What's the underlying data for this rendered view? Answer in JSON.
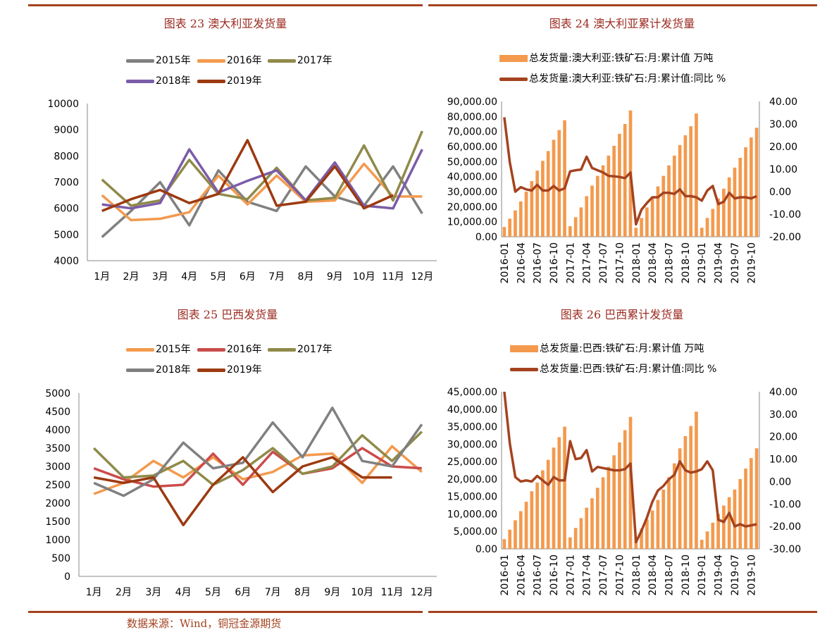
{
  "source": "数据来源：Wind，铜冠金源期货",
  "colors": {
    "title": "#9b2b21",
    "rule": "#a4431f",
    "y2015": "#808080",
    "y2016": "#f39a4e",
    "y2017": "#8f8a4a",
    "y2018": "#7b5ca8",
    "y2019": "#9c3a10",
    "bar": "#f39a4e",
    "line": "#a4431f"
  },
  "chart_data": [
    {
      "id": "c23",
      "type": "line",
      "title": "图表 23 澳大利亚发货量",
      "categories": [
        "1月",
        "2月",
        "3月",
        "4月",
        "5月",
        "6月",
        "7月",
        "8月",
        "9月",
        "10月",
        "11月",
        "12月"
      ],
      "ylim": [
        4000,
        10000
      ],
      "yticks": [
        4000,
        5000,
        6000,
        7000,
        8000,
        9000,
        10000
      ],
      "series": [
        {
          "name": "2015年",
          "color": "#808080",
          "values": [
            4900,
            5900,
            7000,
            5350,
            7450,
            6250,
            5900,
            7600,
            6450,
            6100,
            7600,
            5800
          ]
        },
        {
          "name": "2016年",
          "color": "#f39a4e",
          "values": [
            6500,
            5550,
            5600,
            5850,
            7250,
            6150,
            7250,
            6250,
            6300,
            7700,
            6450,
            6450
          ]
        },
        {
          "name": "2017年",
          "color": "#8f8a4a",
          "values": [
            7100,
            6100,
            6300,
            7850,
            6550,
            6350,
            7550,
            6300,
            6400,
            8400,
            6300,
            8950
          ]
        },
        {
          "name": "2018年",
          "color": "#7b5ca8",
          "values": [
            6150,
            6000,
            6200,
            8250,
            6600,
            7050,
            7450,
            6300,
            7750,
            6100,
            6000,
            8250
          ]
        },
        {
          "name": "2019年",
          "color": "#9c3a10",
          "values": [
            5900,
            6350,
            6700,
            6200,
            6550,
            8600,
            6100,
            6250,
            7600,
            6000,
            6500,
            null
          ]
        }
      ]
    },
    {
      "id": "c24",
      "type": "bar",
      "title": "图表 24  澳大利亚累计发货量",
      "bar_series_name": "总发货量:澳大利亚:铁矿石:月:累计值 万吨",
      "line_series_name": "总发货量:澳大利亚:铁矿石:月:累计值:同比 %",
      "tick_labels": [
        "2016-01",
        "2016-04",
        "2016-07",
        "2016-10",
        "2017-01",
        "2017-04",
        "2017-07",
        "2017-10",
        "2018-01",
        "2018-04",
        "2018-07",
        "2018-10",
        "2019-01",
        "2019-04",
        "2019-07",
        "2019-10"
      ],
      "ylim": [
        0,
        90000
      ],
      "y2lim": [
        -20,
        40
      ],
      "yticks_label": [
        "0.00",
        "10,000.00",
        "20,000.00",
        "30,000.00",
        "40,000.00",
        "50,000.00",
        "60,000.00",
        "70,000.00",
        "80,000.00",
        "90,000.00"
      ],
      "y2ticks_label": [
        "-20.00",
        "-10.00",
        "0.00",
        "10.00",
        "20.00",
        "30.00",
        "40.00"
      ],
      "bars": [
        6500,
        12000,
        17500,
        23500,
        30000,
        37000,
        44000,
        50500,
        57000,
        64500,
        71000,
        77500,
        7000,
        13000,
        19500,
        27000,
        34000,
        40500,
        47500,
        54000,
        60500,
        68500,
        75000,
        84000,
        6000,
        12500,
        19500,
        26500,
        33500,
        40500,
        47500,
        54000,
        61000,
        67500,
        73500,
        82000,
        6000,
        12500,
        18500,
        25500,
        32000,
        39500,
        46000,
        52500,
        59500,
        66000,
        72500
      ],
      "line": [
        33,
        13,
        0,
        2,
        1,
        0.5,
        3,
        0.5,
        0.5,
        2.5,
        0.5,
        1.5,
        9,
        9.5,
        9.8,
        15.5,
        10.5,
        9.5,
        8.5,
        7,
        6.8,
        6.5,
        6,
        8.5,
        -14.5,
        -8,
        -5,
        -2.5,
        -2.5,
        -0.5,
        -0.5,
        -1,
        1,
        -2,
        -2,
        -2.5,
        -4,
        0.5,
        2.5,
        -5.5,
        -4.5,
        -0.5,
        -3,
        -2.5,
        -2.5,
        -3,
        -2
      ]
    },
    {
      "id": "c25",
      "type": "line",
      "title": "图表 25  巴西发货量",
      "categories": [
        "1月",
        "2月",
        "3月",
        "4月",
        "5月",
        "6月",
        "7月",
        "8月",
        "9月",
        "10月",
        "11月",
        "12月"
      ],
      "ylim": [
        0,
        5000
      ],
      "yticks": [
        0,
        500,
        1000,
        1500,
        2000,
        2500,
        3000,
        3500,
        4000,
        4500,
        5000
      ],
      "series": [
        {
          "name": "2015年",
          "color": "#f39a4e",
          "values": [
            2250,
            2550,
            3150,
            2700,
            3250,
            2650,
            2850,
            3300,
            3350,
            2550,
            3550,
            2850
          ]
        },
        {
          "name": "2016年",
          "color": "#c94c4a",
          "values": [
            2950,
            2650,
            2450,
            2500,
            3350,
            2500,
            3400,
            2800,
            2950,
            3500,
            3000,
            2950
          ]
        },
        {
          "name": "2017年",
          "color": "#8f8a4a",
          "values": [
            3500,
            2700,
            2750,
            3150,
            2500,
            2900,
            3500,
            2800,
            3000,
            3850,
            3150,
            3950
          ]
        },
        {
          "name": "2018年",
          "color": "#808080",
          "values": [
            2550,
            2200,
            2650,
            3650,
            2950,
            3100,
            4200,
            3250,
            4600,
            3150,
            3000,
            4150
          ]
        },
        {
          "name": "2019年",
          "color": "#9c3a10",
          "values": [
            2700,
            2550,
            2700,
            1400,
            2500,
            3250,
            2300,
            3000,
            3250,
            2700,
            2700,
            null
          ]
        }
      ]
    },
    {
      "id": "c26",
      "type": "bar",
      "title": "图表 26  巴西累计发货量",
      "bar_series_name": "总发货量:巴西:铁矿石:月:累计值 万吨",
      "line_series_name": "总发货量:巴西:铁矿石:月:累计值:同比 %",
      "tick_labels": [
        "2016-01",
        "2016-04",
        "2016-07",
        "2016-10",
        "2017-01",
        "2017-04",
        "2017-07",
        "2017-10",
        "2018-01",
        "2018-04",
        "2018-07",
        "2018-10",
        "2019-01",
        "2019-04",
        "2019-07",
        "2019-10"
      ],
      "ylim": [
        0,
        45000
      ],
      "y2lim": [
        -30,
        40
      ],
      "yticks_label": [
        "0.00",
        "5,000.00",
        "10,000.00",
        "15,000.00",
        "20,000.00",
        "25,000.00",
        "30,000.00",
        "35,000.00",
        "40,000.00",
        "45,000.00"
      ],
      "y2ticks_label": [
        "-30.00",
        "-20.00",
        "-10.00",
        "0.00",
        "10.00",
        "20.00",
        "30.00",
        "40.00"
      ],
      "bars": [
        2800,
        5500,
        8200,
        10800,
        13500,
        16500,
        19000,
        22500,
        25500,
        29000,
        32000,
        35000,
        3300,
        6000,
        8800,
        11800,
        14500,
        17500,
        20500,
        23500,
        26800,
        30500,
        34000,
        37800,
        3000,
        5800,
        8500,
        11000,
        14000,
        17000,
        20500,
        24500,
        28800,
        32300,
        35200,
        39300,
        2600,
        5000,
        7500,
        10000,
        12400,
        14800,
        17000,
        20000,
        23000,
        26000,
        28800
      ],
      "line": [
        40,
        17,
        2,
        0,
        0.5,
        0,
        2.5,
        0.5,
        -1.5,
        2,
        0.5,
        0.5,
        18,
        10,
        10.5,
        14,
        4.5,
        6.5,
        6,
        5.5,
        5,
        5,
        5.5,
        8,
        -27,
        -22,
        -16,
        -9,
        -4,
        -2,
        1,
        3,
        9,
        5,
        4,
        4.5,
        5.5,
        9,
        5,
        -17,
        -18,
        -14,
        -20,
        -19,
        -20,
        -19.5,
        -19
      ]
    }
  ]
}
